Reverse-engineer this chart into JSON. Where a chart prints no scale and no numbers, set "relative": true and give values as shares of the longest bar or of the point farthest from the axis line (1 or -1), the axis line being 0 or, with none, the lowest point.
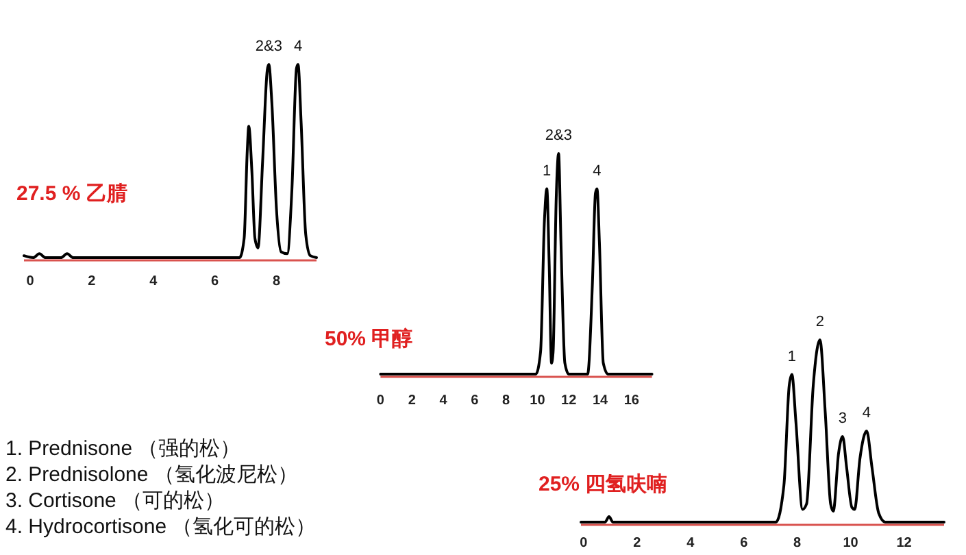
{
  "chart_data": [
    {
      "type": "line",
      "relative": true,
      "title": "27.5 % 乙腈",
      "xlim": [
        -0.2,
        9.3
      ],
      "xticks": [
        0,
        2,
        4,
        6,
        8
      ],
      "series": [
        {
          "color": "#000000",
          "x": [
            -0.2,
            0.1,
            0.3,
            0.5,
            1.0,
            1.2,
            1.4,
            6.8,
            6.95,
            7.05,
            7.1,
            7.2,
            7.3,
            7.4,
            7.55,
            7.7,
            7.75,
            7.85,
            8.0,
            8.15,
            8.35,
            8.5,
            8.65,
            8.7,
            8.8,
            8.95,
            9.1,
            9.3
          ],
          "values": [
            0.01,
            0,
            0.02,
            0,
            0,
            0.02,
            0,
            0,
            0.1,
            0.55,
            0.68,
            0.45,
            0.1,
            0.05,
            0.5,
            0.97,
            1,
            0.8,
            0.25,
            0.03,
            0.02,
            0.35,
            0.98,
            1,
            0.7,
            0.12,
            0.01,
            0
          ]
        }
      ],
      "annotations": [
        {
          "text": "2&3",
          "x": 7.75,
          "y": 1
        },
        {
          "text": "4",
          "x": 8.7,
          "y": 1
        }
      ]
    },
    {
      "type": "line",
      "relative": true,
      "title": "50% 甲醇",
      "xlim": [
        0,
        17.3
      ],
      "xticks": [
        0,
        2,
        4,
        6,
        8,
        10,
        12,
        14,
        16
      ],
      "series": [
        {
          "color": "#000000",
          "x": [
            0,
            9.9,
            10.2,
            10.45,
            10.6,
            10.75,
            10.9,
            11.0,
            11.2,
            11.35,
            11.5,
            11.75,
            12,
            13.2,
            13.5,
            13.7,
            13.8,
            13.95,
            14.2,
            14.5,
            17.3
          ],
          "values": [
            0,
            0,
            0.1,
            0.7,
            0.84,
            0.5,
            0.05,
            0.1,
            0.8,
            1,
            0.6,
            0.05,
            0,
            0,
            0.4,
            0.82,
            0.84,
            0.6,
            0.05,
            0,
            0
          ]
        }
      ],
      "annotations": [
        {
          "text": "1",
          "x": 10.6,
          "y": 0.84
        },
        {
          "text": "2&3",
          "x": 11.35,
          "y": 1
        },
        {
          "text": "4",
          "x": 13.8,
          "y": 0.84
        }
      ]
    },
    {
      "type": "line",
      "relative": true,
      "title": "25% 四氢呋喃",
      "xlim": [
        -0.1,
        13.5
      ],
      "xticks": [
        0,
        2,
        4,
        6,
        8,
        10,
        12
      ],
      "series": [
        {
          "color": "#000000",
          "x": [
            -0.1,
            0.8,
            0.95,
            1.1,
            7.2,
            7.5,
            7.7,
            7.8,
            7.95,
            8.2,
            8.35,
            8.6,
            8.85,
            9.05,
            9.25,
            9.35,
            9.55,
            9.7,
            9.85,
            10.05,
            10.15,
            10.35,
            10.6,
            10.8,
            11.05,
            11.3,
            13.5
          ],
          "values": [
            0,
            0,
            0.03,
            0,
            0,
            0.2,
            0.75,
            0.81,
            0.55,
            0.07,
            0.1,
            0.75,
            1,
            0.6,
            0.1,
            0.06,
            0.38,
            0.47,
            0.3,
            0.08,
            0.07,
            0.35,
            0.5,
            0.3,
            0.05,
            0,
            0
          ]
        }
      ],
      "annotations": [
        {
          "text": "1",
          "x": 7.8,
          "y": 0.81
        },
        {
          "text": "2",
          "x": 8.85,
          "y": 1
        },
        {
          "text": "3",
          "x": 9.7,
          "y": 0.47
        },
        {
          "text": "4",
          "x": 10.6,
          "y": 0.5
        }
      ]
    },
    {
      "type": "other",
      "annotations": [
        "1.  Prednisone （强的松）",
        "2.  Prednisolone （氢化波尼松）",
        "3.  Cortisone （可的松）",
        "4.  Hydrocortisone （氢化可的松）"
      ]
    }
  ]
}
